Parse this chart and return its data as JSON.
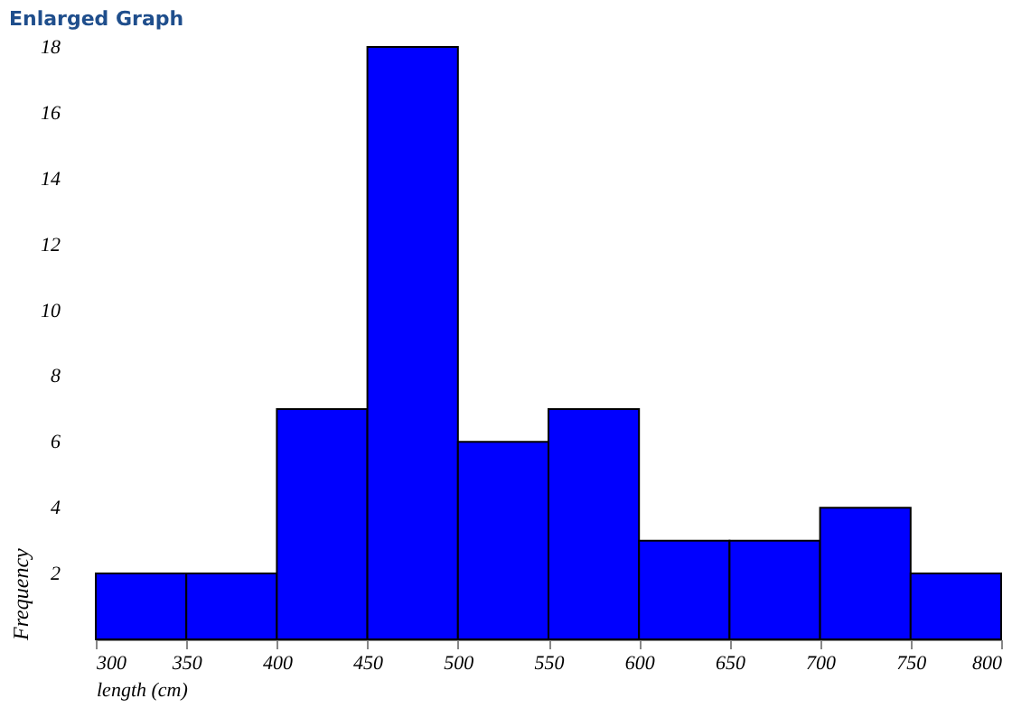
{
  "chart_data": {
    "type": "histogram",
    "title": "Enlarged Graph",
    "xlabel": "length (cm)",
    "ylabel": "Frequency",
    "bins": [
      300,
      350,
      400,
      450,
      500,
      550,
      600,
      650,
      700,
      750,
      800
    ],
    "values": [
      2,
      2,
      7,
      18,
      6,
      7,
      3,
      3,
      4,
      2
    ],
    "color": "#0000ff",
    "xlim": [
      300,
      800
    ],
    "xticks": [
      300,
      350,
      400,
      450,
      500,
      550,
      600,
      650,
      700,
      750,
      800
    ],
    "ylim": [
      0,
      18
    ],
    "yticks": [
      2,
      4,
      6,
      8,
      10,
      12,
      14,
      16,
      18
    ],
    "grid": false
  }
}
